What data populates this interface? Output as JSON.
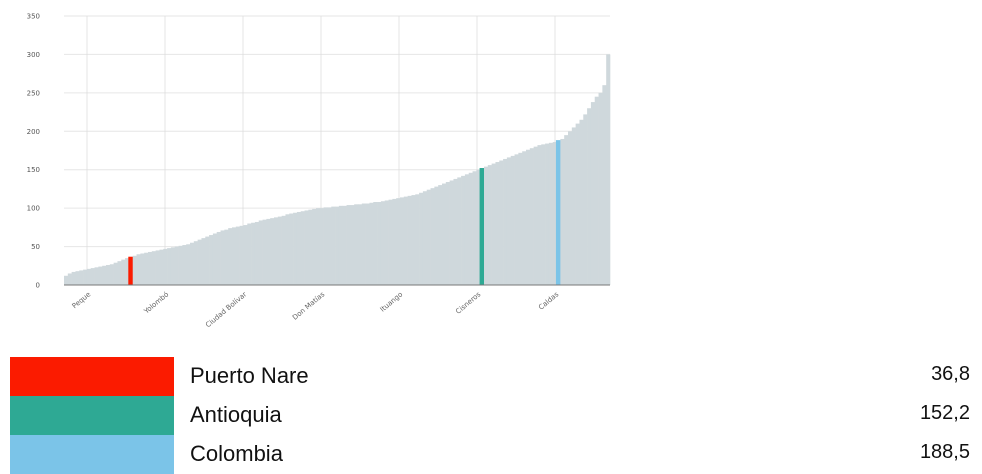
{
  "chart_data": {
    "type": "bar",
    "ylim": [
      0,
      350
    ],
    "yticks": [
      0,
      50,
      100,
      150,
      200,
      250,
      300,
      350
    ],
    "grid": true,
    "xtick_labels": [
      "Peque",
      "Yolombó",
      "Ciudad Bolívar",
      "Don Matías",
      "Ituango",
      "Cisneros",
      "Caldas"
    ],
    "bar_color": "#cfd8dc",
    "values": [
      12,
      15,
      17,
      18,
      19,
      20,
      21,
      22,
      23,
      24,
      25,
      26,
      27,
      29,
      31,
      33,
      35,
      36.8,
      38,
      40,
      41,
      42,
      43,
      44,
      45,
      46,
      47,
      48,
      49,
      50,
      51,
      52,
      53,
      55,
      57,
      59,
      61,
      63,
      65,
      67,
      69,
      71,
      72,
      74,
      75,
      76,
      77,
      78,
      80,
      81,
      82,
      84,
      85,
      86,
      87,
      88,
      89,
      90,
      92,
      93,
      94,
      95,
      96,
      97,
      98,
      99,
      100,
      100,
      101,
      101,
      102,
      102,
      103,
      103,
      104,
      104,
      105,
      105,
      106,
      106,
      107,
      108,
      108,
      109,
      110,
      111,
      112,
      113,
      114,
      115,
      116,
      117,
      118,
      120,
      122,
      124,
      126,
      128,
      130,
      132,
      134,
      136,
      138,
      140,
      142,
      144,
      146,
      148,
      150,
      152.2,
      154,
      156,
      158,
      160,
      162,
      164,
      166,
      168,
      170,
      172,
      174,
      176,
      178,
      180,
      182,
      183,
      184,
      185,
      186,
      188.5,
      190,
      195,
      200,
      205,
      210,
      215,
      222,
      230,
      238,
      245,
      250,
      260,
      300
    ],
    "highlights": [
      {
        "name": "Puerto Nare",
        "value": "36,8",
        "color": "#fb1b00",
        "index": 17
      },
      {
        "name": "Antioquia",
        "value": "152,2",
        "color": "#2ea994",
        "index": 109
      },
      {
        "name": "Colombia",
        "value": "188,5",
        "color": "#7bc4e8",
        "index": 129
      }
    ]
  },
  "legend": [
    {
      "label": "Puerto Nare",
      "value": "36,8",
      "color": "#fb1b00"
    },
    {
      "label": "Antioquia",
      "value": "152,2",
      "color": "#2ea994"
    },
    {
      "label": "Colombia",
      "value": "188,5",
      "color": "#7bc4e8"
    }
  ]
}
